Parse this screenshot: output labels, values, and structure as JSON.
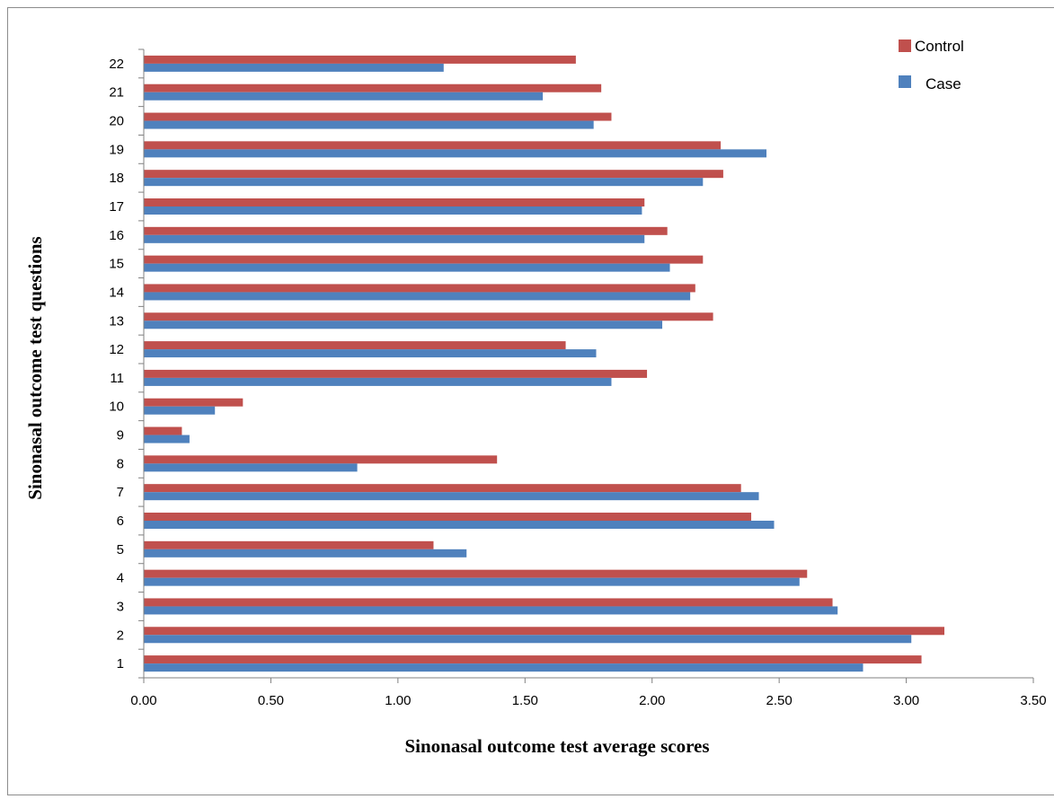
{
  "chart_data": {
    "type": "bar",
    "orientation": "horizontal",
    "title": "",
    "xlabel": "Sinonasal outcome test average scores",
    "ylabel": "Sinonasal outcome test questions",
    "xlim": [
      0,
      3.5
    ],
    "x_ticks": [
      "0.00",
      "0.50",
      "1.00",
      "1.50",
      "2.00",
      "2.50",
      "3.00",
      "3.50"
    ],
    "categories": [
      "1",
      "2",
      "3",
      "4",
      "5",
      "6",
      "7",
      "8",
      "9",
      "10",
      "11",
      "12",
      "13",
      "14",
      "15",
      "16",
      "17",
      "18",
      "19",
      "20",
      "21",
      "22"
    ],
    "series": [
      {
        "name": "Control",
        "color": "#c0504d",
        "values": [
          3.06,
          3.15,
          2.71,
          2.61,
          1.14,
          2.39,
          2.35,
          1.39,
          0.15,
          0.39,
          1.98,
          1.66,
          2.24,
          2.17,
          2.2,
          2.06,
          1.97,
          2.28,
          2.27,
          1.84,
          1.8,
          1.7
        ]
      },
      {
        "name": "Case",
        "color": "#4f81bd",
        "values": [
          2.83,
          3.02,
          2.73,
          2.58,
          1.27,
          2.48,
          2.42,
          0.84,
          0.18,
          0.28,
          1.84,
          1.78,
          2.04,
          2.15,
          2.07,
          1.97,
          1.96,
          2.2,
          2.45,
          1.77,
          1.57,
          1.18
        ]
      }
    ],
    "grid": false,
    "legend_position": "top-right"
  }
}
